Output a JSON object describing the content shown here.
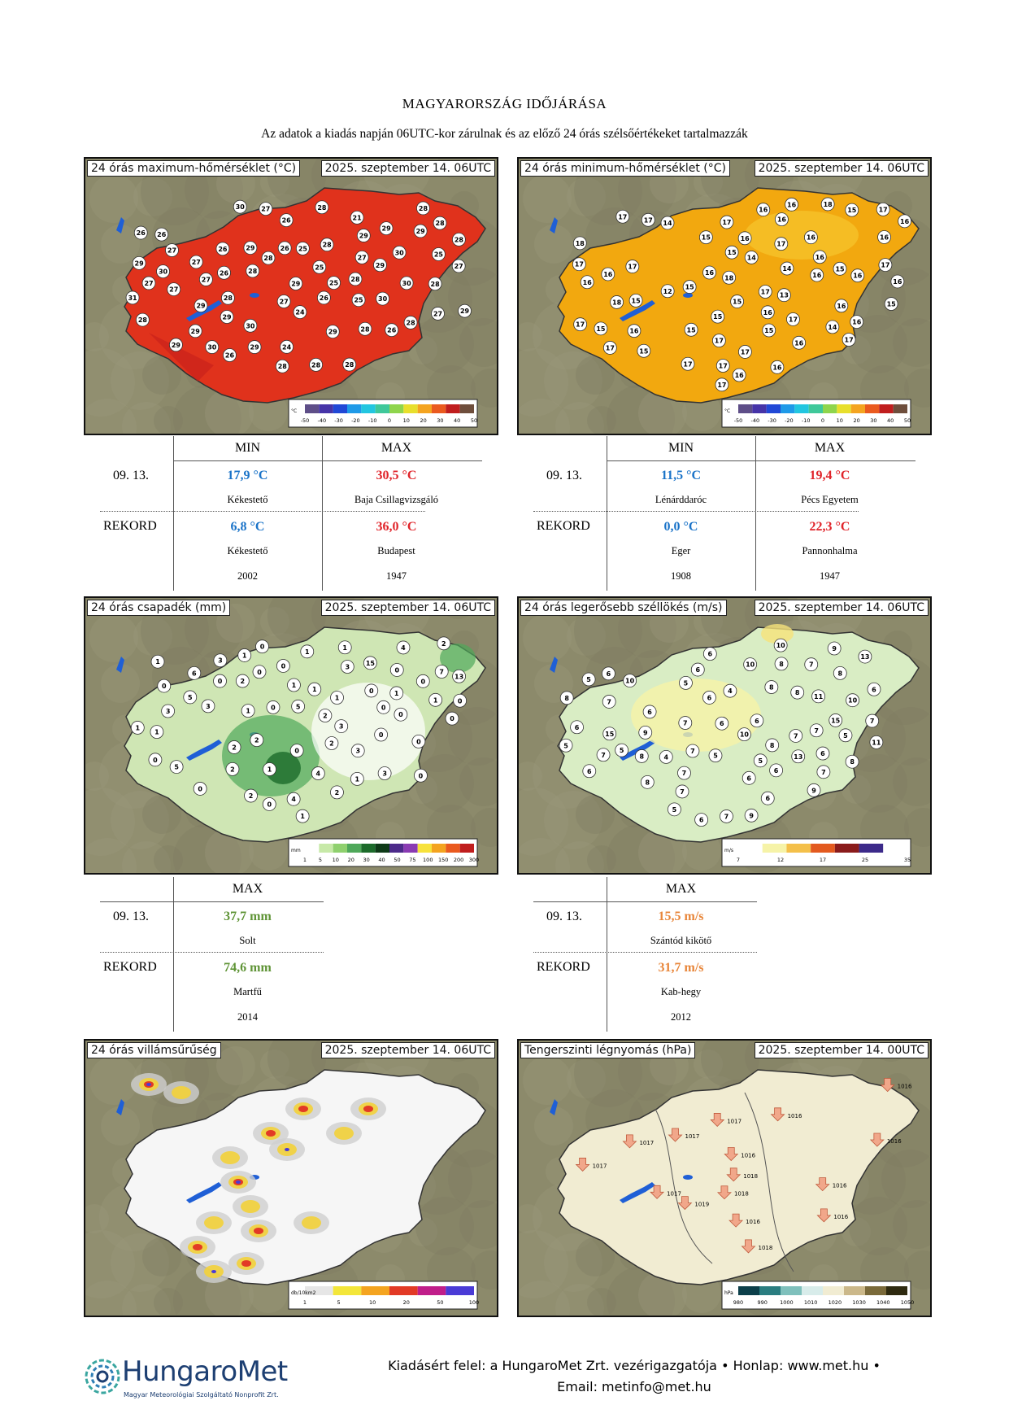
{
  "header": {
    "title": "MAGYARORSZÁG IDŐJÁRÁSA",
    "subtitle": "Az adatok a kiadás napján 06UTC-kor zárulnak és az előző 24 órás szélsőértékeket tartalmazzák"
  },
  "maps": {
    "tmax": {
      "label": "24 órás maximum-hőmérséklet (°C)",
      "date": "2025. szeptember 14. 06UTC",
      "scale_unit": "°C",
      "scale_ticks": [
        "-50",
        "-40",
        "-30",
        "-20",
        "-10",
        "0",
        "10",
        "20",
        "30",
        "40",
        "50"
      ]
    },
    "tmin": {
      "label": "24 órás minimum-hőmérséklet (°C)",
      "date": "2025. szeptember 14. 06UTC",
      "scale_unit": "°C",
      "scale_ticks": [
        "-50",
        "-40",
        "-30",
        "-20",
        "-10",
        "0",
        "10",
        "20",
        "30",
        "40",
        "50"
      ]
    },
    "precip": {
      "label": "24 órás csapadék (mm)",
      "date": "2025. szeptember 14. 06UTC",
      "scale_unit": "mm",
      "scale_ticks": [
        "1",
        "5",
        "10",
        "20",
        "30",
        "40",
        "50",
        "75",
        "100",
        "150",
        "200",
        "300"
      ]
    },
    "wind": {
      "label": "24 órás legerősebb széllökés (m/s)",
      "date": "2025. szeptember 14. 06UTC",
      "scale_unit": "m/s",
      "scale_ticks": [
        "7",
        "12",
        "17",
        "25",
        "35"
      ]
    },
    "lightning": {
      "label": "24 órás villámsűrűség",
      "date": "2025. szeptember 14. 06UTC",
      "scale_unit": "db/10km2",
      "scale_ticks": [
        "1",
        "5",
        "10",
        "20",
        "50",
        "100"
      ]
    },
    "pressure": {
      "label": "Tengerszinti légnyomás (hPa)",
      "date": "2025. szeptember 14. 00UTC",
      "scale_unit": "hPa",
      "scale_ticks": [
        "980",
        "990",
        "1000",
        "1010",
        "1020",
        "1030",
        "1040",
        "1050"
      ]
    }
  },
  "station_values": {
    "tmax": [
      "24",
      "27",
      "27",
      "25",
      "26",
      "21",
      "25",
      "26",
      "27",
      "28",
      "27",
      "26",
      "25",
      "28",
      "26",
      "26",
      "27",
      "28",
      "27",
      "28",
      "26",
      "29",
      "28",
      "27",
      "25",
      "26",
      "28",
      "29",
      "28",
      "29",
      "24",
      "26",
      "27",
      "28",
      "25",
      "28",
      "28",
      "29",
      "28",
      "29",
      "29",
      "30",
      "29",
      "30",
      "27",
      "26",
      "28",
      "27",
      "29",
      "28",
      "29",
      "30",
      "30",
      "29",
      "28",
      "28",
      "29",
      "31",
      "29",
      "30",
      "29",
      "30",
      "28",
      "29",
      "30"
    ],
    "tmin": [
      "14",
      "15",
      "17",
      "15",
      "16",
      "15",
      "12",
      "15",
      "17",
      "15",
      "16",
      "15",
      "16",
      "14",
      "16",
      "13",
      "16",
      "15",
      "16",
      "15",
      "16",
      "17",
      "16",
      "17",
      "17",
      "16",
      "17",
      "17",
      "16",
      "16",
      "16",
      "17",
      "16",
      "15",
      "14",
      "16",
      "18",
      "17",
      "14",
      "16",
      "17",
      "16",
      "15",
      "17",
      "16",
      "17",
      "17",
      "15",
      "16",
      "15",
      "17",
      "16",
      "18",
      "17",
      "18",
      "17",
      "15",
      "16",
      "17",
      "18",
      "17",
      "16"
    ],
    "precip": [
      "0",
      "2",
      "4",
      "0",
      "1",
      "15",
      "2",
      "1",
      "0",
      "1",
      "3",
      "5",
      "0",
      "13",
      "1",
      "3",
      "0",
      "1",
      "1",
      "2",
      "1",
      "0",
      "3",
      "4",
      "3",
      "2",
      "0",
      "0",
      "5",
      "1",
      "6",
      "3",
      "2",
      "0",
      "7",
      "4",
      "2",
      "0",
      "0",
      "1",
      "0",
      "3",
      "1",
      "5",
      "2",
      "1",
      "0",
      "1",
      "2",
      "0",
      "1",
      "3",
      "0",
      "0",
      "0",
      "0",
      "1",
      "0",
      "2",
      "0",
      "1"
    ],
    "wind": [
      "5",
      "6",
      "5",
      "7",
      "4",
      "11",
      "4",
      "8",
      "7",
      "6",
      "8",
      "6",
      "10",
      "6",
      "13",
      "15",
      "11",
      "15",
      "8",
      "6",
      "7",
      "6",
      "8",
      "8",
      "7",
      "6",
      "5",
      "10",
      "7",
      "6",
      "8",
      "13",
      "7",
      "7",
      "5",
      "6",
      "5",
      "10",
      "10",
      "6",
      "9",
      "7",
      "7",
      "6",
      "8",
      "6",
      "9",
      "9",
      "5",
      "6",
      "8",
      "5",
      "7",
      "6",
      "9",
      "5",
      "6",
      "7",
      "8",
      "10",
      "7"
    ],
    "pressure": [
      "1016",
      "1016",
      "1016",
      "1018",
      "1019",
      "1018",
      "1017",
      "1017",
      "1017",
      "1016",
      "1016",
      "1017",
      "1016",
      "1018",
      "1017",
      "1016"
    ]
  },
  "temp_table": {
    "col_min": "MIN",
    "col_max": "MAX",
    "date": "09. 13.",
    "record_label": "REKORD",
    "left": {
      "min_value": "17,9 °C",
      "min_station": "Kékestető",
      "max_value": "30,5 °C",
      "max_station": "Baja Csillagvizsgáló",
      "rec_min_value": "6,8 °C",
      "rec_min_station": "Kékestető",
      "rec_min_year": "2002",
      "rec_max_value": "36,0 °C",
      "rec_max_station": "Budapest",
      "rec_max_year": "1947"
    },
    "right": {
      "min_value": "11,5 °C",
      "min_station": "Lénárddaróc",
      "max_value": "19,4 °C",
      "max_station": "Pécs Egyetem",
      "rec_min_value": "0,0 °C",
      "rec_min_station": "Eger",
      "rec_min_year": "1908",
      "rec_max_value": "22,3 °C",
      "rec_max_station": "Pannonhalma",
      "rec_max_year": "1947"
    }
  },
  "precip_table": {
    "col_max": "MAX",
    "date": "09. 13.",
    "record_label": "REKORD",
    "max_value": "37,7 mm",
    "max_station": "Solt",
    "rec_value": "74,6 mm",
    "rec_station": "Martfű",
    "rec_year": "2014"
  },
  "wind_table": {
    "col_max": "MAX",
    "date": "09. 13.",
    "record_label": "REKORD",
    "max_value": "15,5 m/s",
    "max_station": "Szántód kikötő",
    "rec_value": "31,7 m/s",
    "rec_station": "Kab-hegy",
    "rec_year": "2012"
  },
  "footer": {
    "logo_name": "HungaroMet",
    "logo_sub": "Magyar Meteorológiai Szolgáltató Nonprofit Zrt.",
    "line1": "Kiadásért felel: a HungaroMet Zrt. vezérigazgatója • Honlap: www.met.hu •",
    "line2": "Email: metinfo@met.hu"
  },
  "colors": {
    "tmax_fill": "#e0321c",
    "tmin_fill": "#f2a80f",
    "precip_fill": "#cfe6b4",
    "wind_fill": "#d9edc4",
    "lightning_fill": "#f6f6f6",
    "pressure_fill": "#f1ecd2",
    "terrain": "#8c8a6b",
    "min_blue": "#1a73c8",
    "max_red": "#e0242a",
    "precip_green": "#5f9436",
    "wind_orange": "#e8863a",
    "logo_blue": "#1d3f72"
  }
}
